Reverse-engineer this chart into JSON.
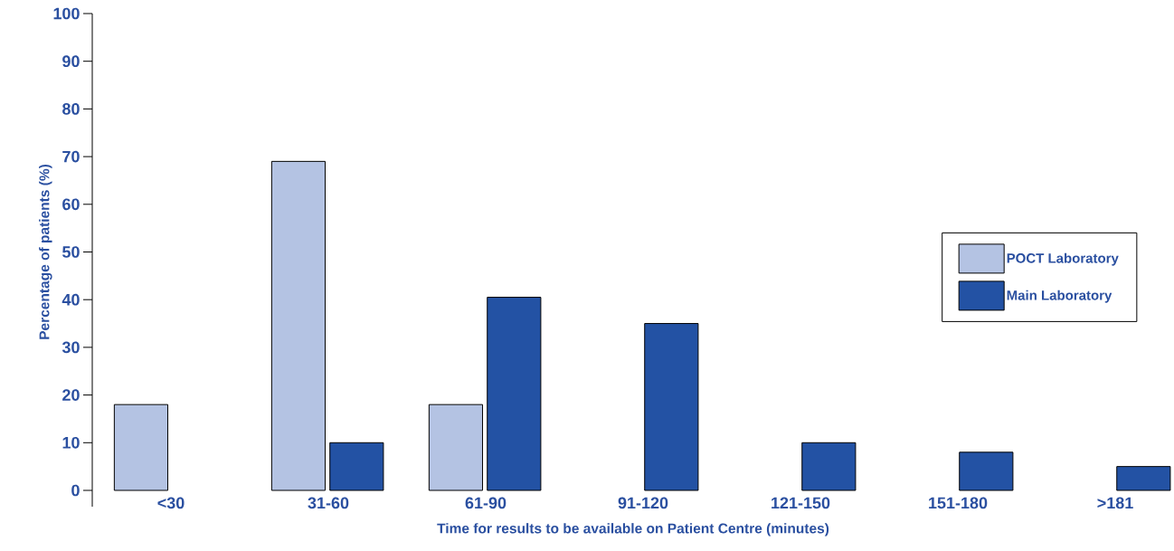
{
  "chart_data": {
    "type": "bar",
    "xlabel": "Time for results to be available on Patient Centre (minutes)",
    "ylabel": "Percentage of patients (%)",
    "categories": [
      "<30",
      "31-60",
      "61-90",
      "91-120",
      "121-150",
      "151-180",
      ">181"
    ],
    "series": [
      {
        "name": "POCT Laboratory",
        "color": "#b4c3e3",
        "values": [
          18,
          69,
          18,
          null,
          null,
          null,
          null
        ]
      },
      {
        "name": "Main Laboratory",
        "color": "#2352a4",
        "values": [
          null,
          10,
          40.5,
          35,
          10,
          8,
          5
        ]
      }
    ],
    "ylim": [
      0,
      100
    ],
    "yticks": [
      0,
      10,
      20,
      30,
      40,
      50,
      60,
      70,
      80,
      90,
      100
    ],
    "legend": "right",
    "grid": false
  }
}
